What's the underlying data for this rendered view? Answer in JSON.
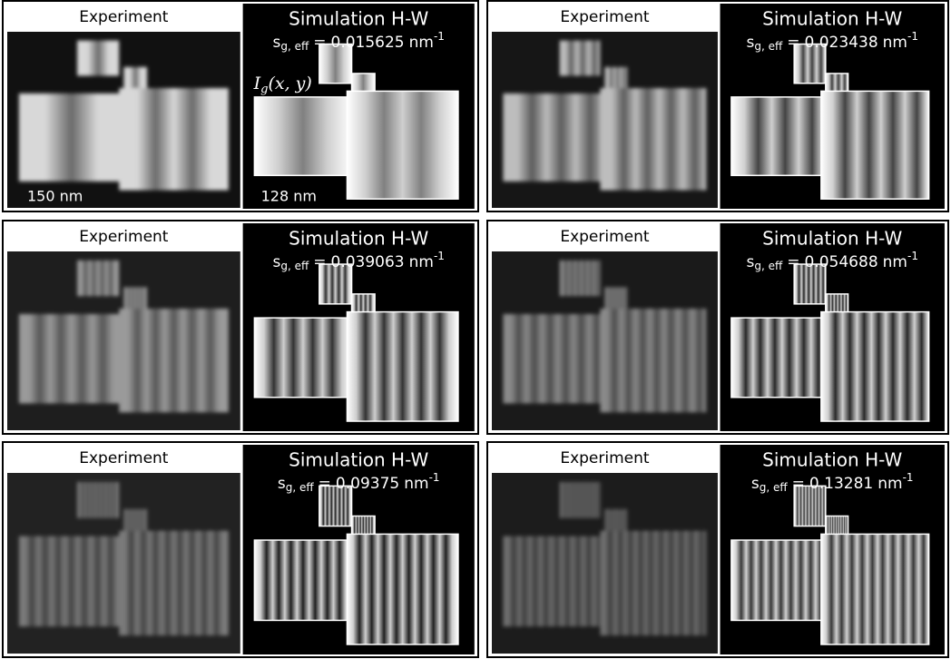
{
  "panels": [
    {
      "experiment": "Experiment",
      "simulation": "Simulation H-W",
      "parameter": {
        "symbol": "s",
        "subscript": "g, eff",
        "relation": "=",
        "value": 0.015625,
        "unit": "nm",
        "exponent": -1
      },
      "experiment_scale": "150 nm",
      "simulation_scale": "128 nm",
      "intensity": {
        "symbol": "I",
        "subscript": "g",
        "arguments": "(x, y)"
      }
    },
    {
      "experiment": "Experiment",
      "simulation": "Simulation H-W",
      "parameter": {
        "symbol": "s",
        "subscript": "g, eff",
        "relation": "=",
        "value": 0.023438,
        "unit": "nm",
        "exponent": -1
      }
    },
    {
      "experiment": "Experiment",
      "simulation": "Simulation H-W",
      "parameter": {
        "symbol": "s",
        "subscript": "g, eff",
        "relation": "=",
        "value": 0.039063,
        "unit": "nm",
        "exponent": -1
      }
    },
    {
      "experiment": "Experiment",
      "simulation": "Simulation H-W",
      "parameter": {
        "symbol": "s",
        "subscript": "g, eff",
        "relation": "=",
        "value": 0.054688,
        "unit": "nm",
        "exponent": -1
      }
    },
    {
      "experiment": "Experiment",
      "simulation": "Simulation H-W",
      "parameter": {
        "symbol": "s",
        "subscript": "g, eff",
        "relation": "=",
        "value": 0.09375,
        "unit": "nm",
        "exponent": -1
      }
    },
    {
      "experiment": "Experiment",
      "simulation": "Simulation H-W",
      "parameter": {
        "symbol": "s",
        "subscript": "g, eff",
        "relation": "=",
        "value": 0.13281,
        "unit": "nm",
        "exponent": -1
      }
    }
  ]
}
